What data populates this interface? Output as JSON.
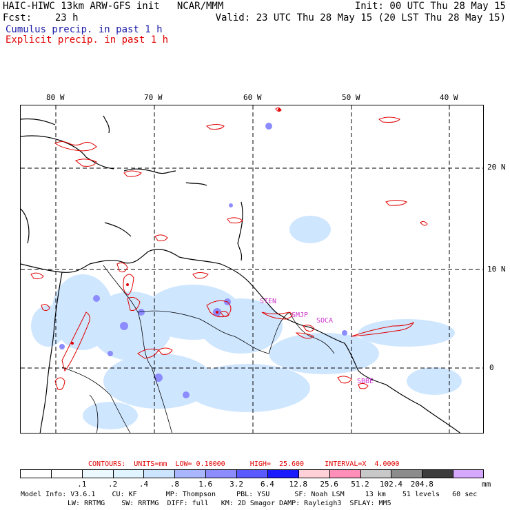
{
  "header": {
    "line1_left": "HAIC-HIWC 13km ARW-GFS init   NCAR/MMM",
    "line1_right": "Init: 00 UTC Thu 28 May 15",
    "line2_left": "Fcst:    23 h",
    "line2_right": "Valid: 23 UTC Thu 28 May 15 (20 LST Thu 28 May 15)",
    "legend_cumulus": "Cumulus precip. in past 1 h",
    "legend_explicit": "Explicit precip. in past 1 h"
  },
  "map": {
    "lon_labels": [
      "80 W",
      "70 W",
      "60 W",
      "50 W",
      "40 W"
    ],
    "lat_labels": [
      "20 N",
      "10 N",
      "0"
    ],
    "stations": [
      "STEN",
      "SMJP",
      "SOCA",
      "SBBE"
    ],
    "colors": {
      "coast": "#000000",
      "grid": "#000000",
      "explicit": "#e00000",
      "cumulus_light": "#cfe6ff",
      "cumulus_heavy": "#3a3aff"
    }
  },
  "contours": {
    "label": "CONTOURS:  UNITS=mm  LOW= 0.10000      HIGH=  25.600     INTERVAL=X  4.0000"
  },
  "colorbar": {
    "colors": [
      "#ffffff",
      "#ffffff",
      "#ecfaff",
      "#e0f5ff",
      "#cde4ff",
      "#aab6ff",
      "#8c8cff",
      "#5a5aff",
      "#1a1aff",
      "#ffd0d8",
      "#ff8fb8",
      "#c8c8c8",
      "#8c8c8c",
      "#3c3c3c",
      "#d6a8ff"
    ],
    "labels": [
      ".1",
      ".2",
      ".4",
      ".8",
      "1.6",
      "3.2",
      "6.4",
      "12.8",
      "25.6",
      "51.2",
      "102.4",
      "204.8"
    ],
    "unit": "mm"
  },
  "footer": {
    "line1": "Model Info: V3.6.1    CU: KF       MP: Thompson     PBL: YSU      SF: Noah LSM     13 km    51 levels   60 sec",
    "line2": "LW: RRTMG    SW: RRTMG  DIFF: full   KM: 2D Smagor DAMP: Rayleigh3  SFLAY: MM5"
  }
}
